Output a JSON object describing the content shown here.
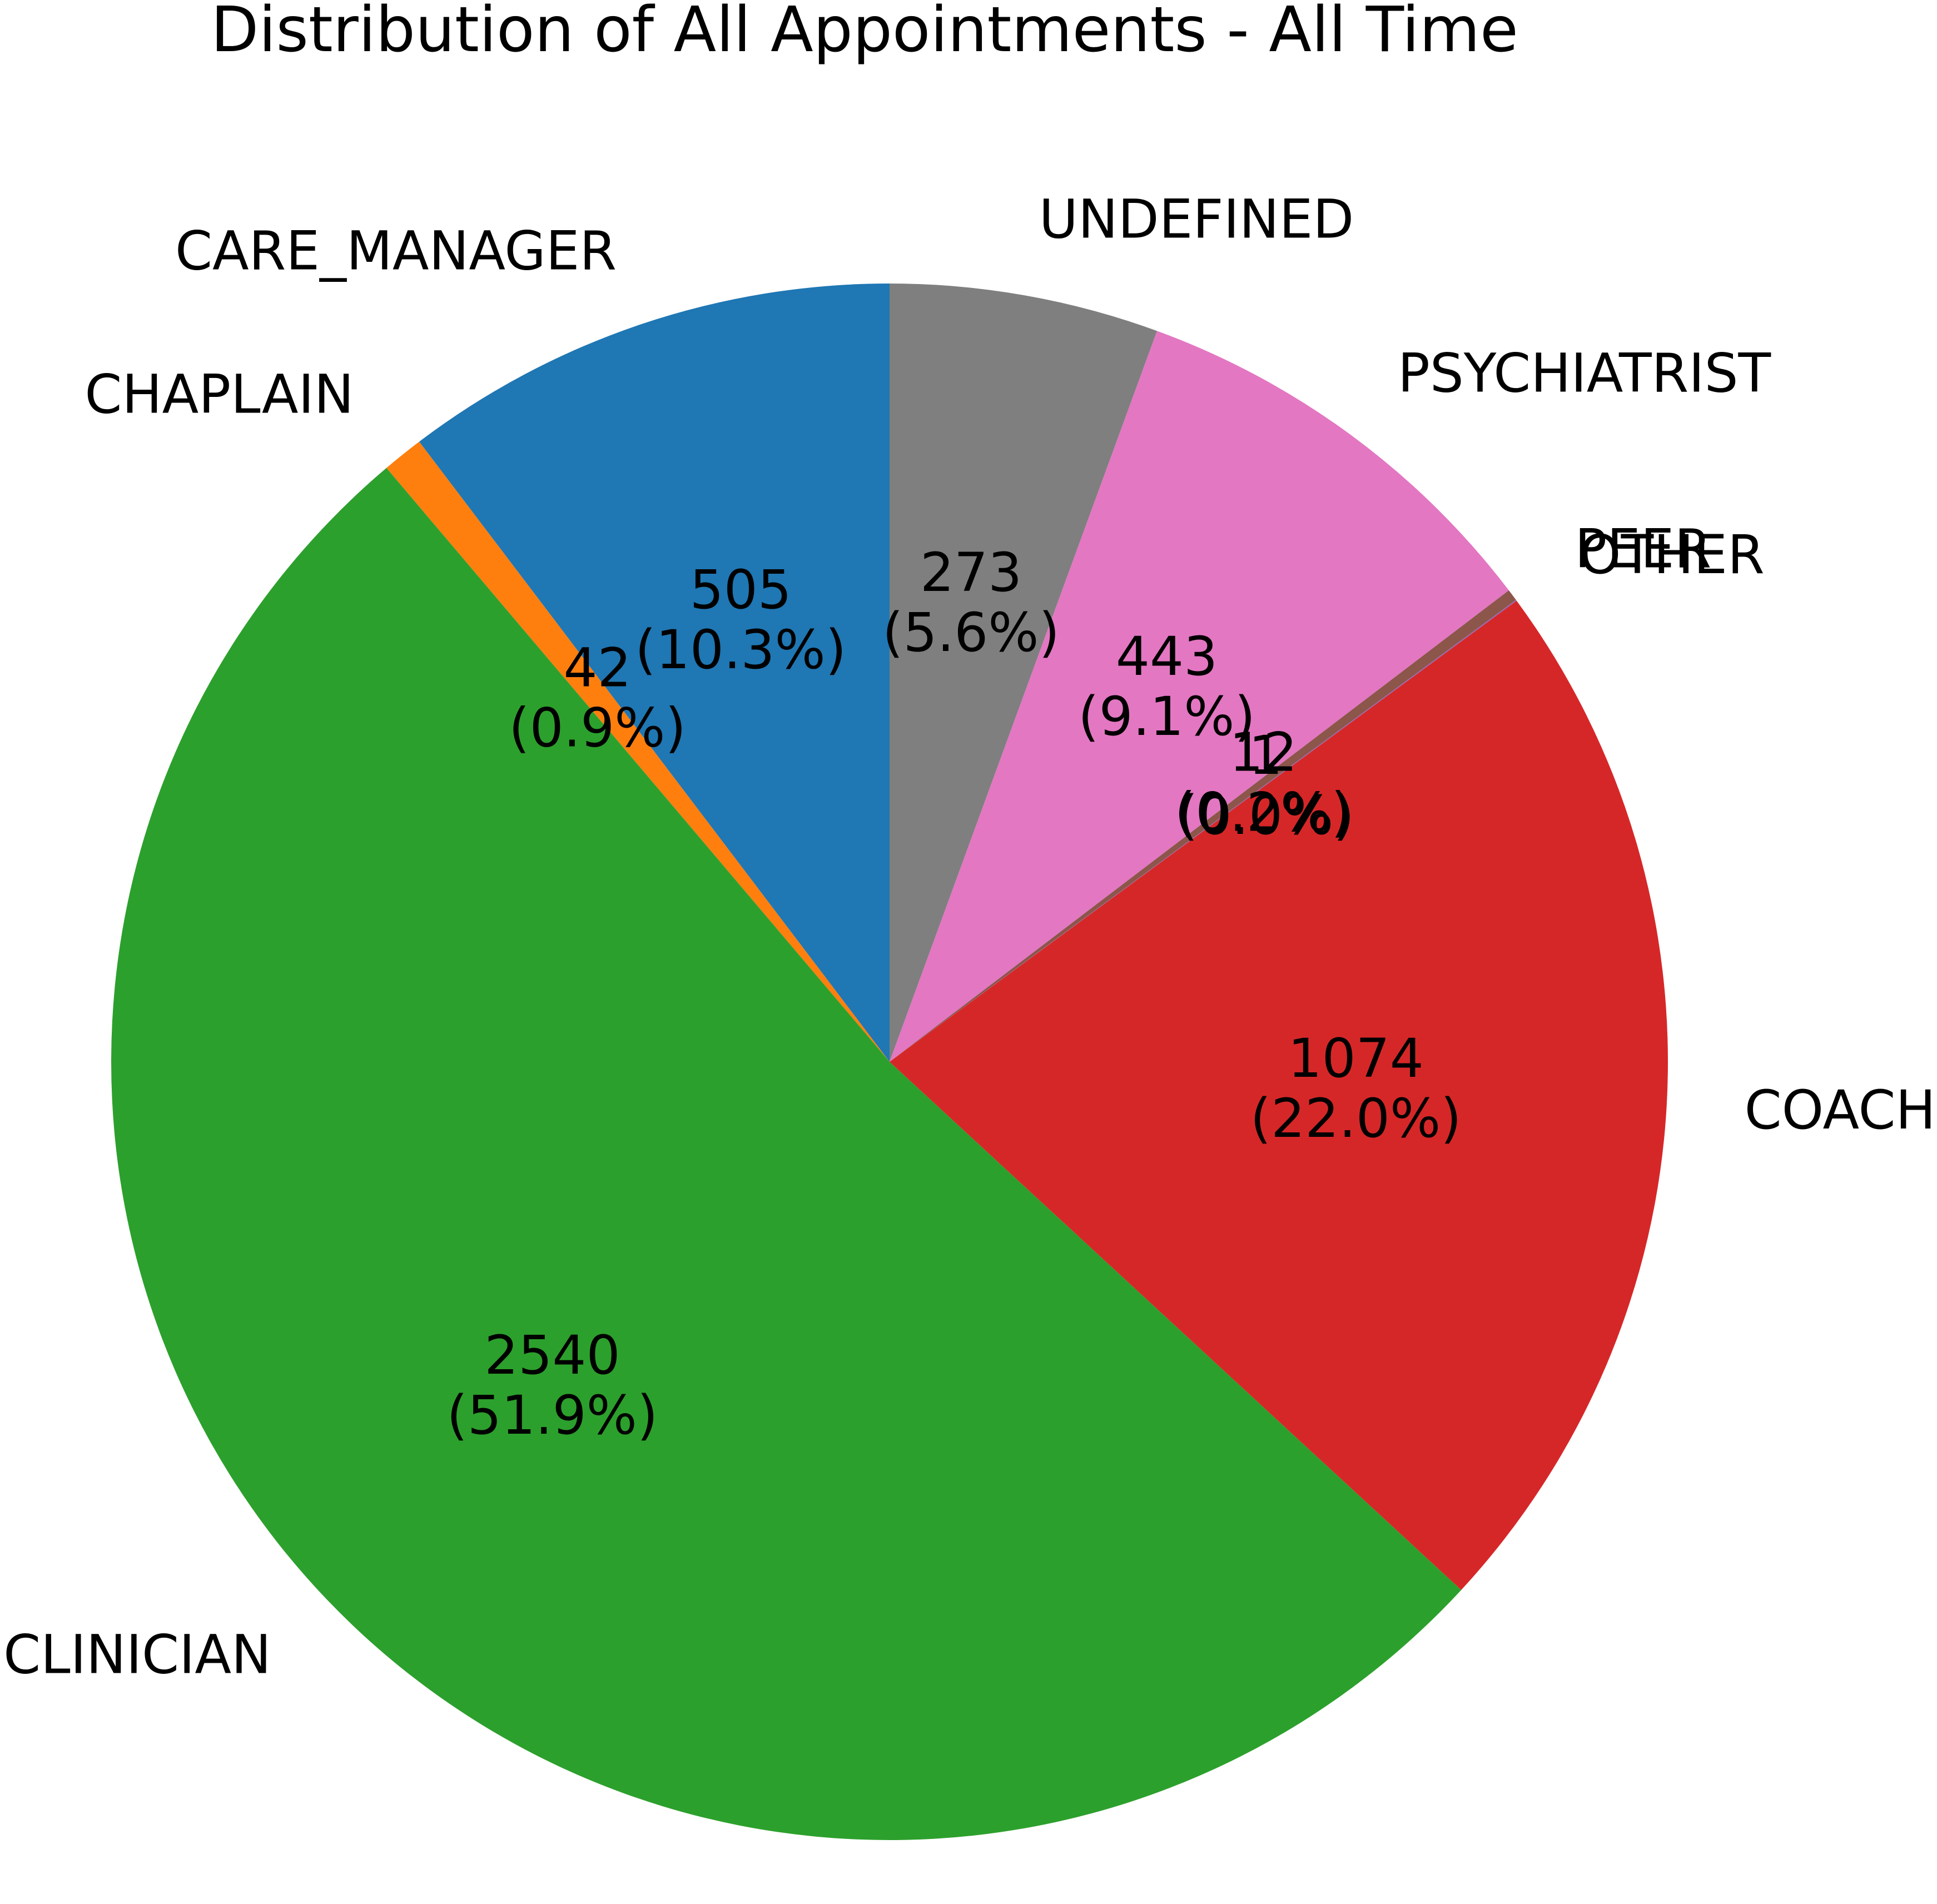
{
  "chart_data": {
    "type": "pie",
    "title": "Distribution of All Appointments - All Time",
    "start_angle_deg": 90,
    "direction": "counterclockwise",
    "slices": [
      {
        "label": "CARE_MANAGER",
        "value": 505,
        "value_text": "505",
        "percent_text": "(10.3%)",
        "color": "#1f77b4"
      },
      {
        "label": "CHAPLAIN",
        "value": 42,
        "value_text": "42",
        "percent_text": "(0.9%)",
        "color": "#ff7f0e"
      },
      {
        "label": "CLINICIAN",
        "value": 2540,
        "value_text": "2540",
        "percent_text": "(51.9%)",
        "color": "#2ca02c"
      },
      {
        "label": "COACH",
        "value": 1074,
        "value_text": "1074",
        "percent_text": "(22.0%)",
        "color": "#d62728"
      },
      {
        "label": "OTHER",
        "value": 1,
        "value_text": "1",
        "percent_text": "(0.0%)",
        "color": "#9467bd"
      },
      {
        "label": "PEER",
        "value": 12,
        "value_text": "12",
        "percent_text": "(0.2%)",
        "color": "#8c564b"
      },
      {
        "label": "PSYCHIATRIST",
        "value": 443,
        "value_text": "443",
        "percent_text": "(9.1%)",
        "color": "#e377c2"
      },
      {
        "label": "UNDEFINED",
        "value": 273,
        "value_text": "273",
        "percent_text": "(5.6%)",
        "color": "#7f7f7f"
      }
    ]
  }
}
